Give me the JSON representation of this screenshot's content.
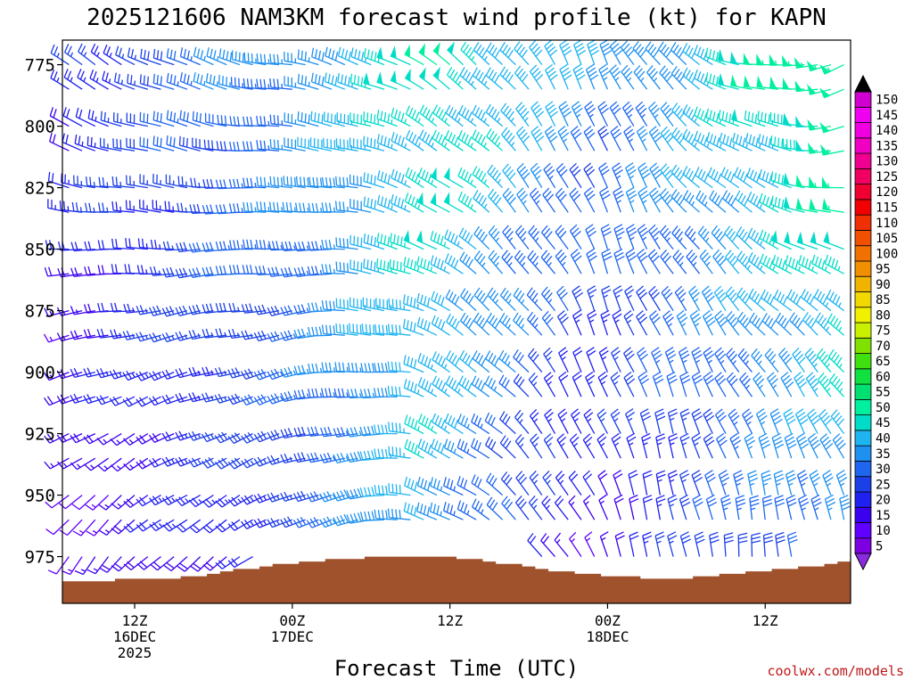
{
  "chart_data": {
    "type": "wind-barb-time-height",
    "title": "2025121606 NAM3KM forecast wind profile (kt) for KAPN",
    "xlabel": "Forecast Time (UTC)",
    "ylabel": "",
    "y_axis": {
      "reversed": true,
      "ylim": [
        765,
        994
      ],
      "ticks": [
        775,
        800,
        825,
        850,
        875,
        900,
        925,
        950,
        975
      ],
      "tick_labels": [
        "775",
        "800",
        "825",
        "850",
        "875",
        "900",
        "925",
        "950",
        "975"
      ]
    },
    "x_axis": {
      "xlim_hours": [
        6.5,
        66.5
      ],
      "ticks": [
        {
          "hour": 12,
          "label": "12Z",
          "sub": "16DEC",
          "sub2": "2025"
        },
        {
          "hour": 24,
          "label": "00Z",
          "sub": "17DEC",
          "sub2": ""
        },
        {
          "hour": 36,
          "label": "12Z",
          "sub": "",
          "sub2": ""
        },
        {
          "hour": 48,
          "label": "00Z",
          "sub": "18DEC",
          "sub2": ""
        },
        {
          "hour": 60,
          "label": "12Z",
          "sub": "",
          "sub2": ""
        }
      ]
    },
    "barb_times_hours": [
      7,
      8,
      9,
      10,
      11,
      12,
      13,
      14,
      15,
      16,
      17,
      18,
      19,
      20,
      21,
      22,
      23,
      24,
      25,
      26,
      27,
      28,
      29,
      30,
      31,
      32,
      33,
      34,
      35,
      36,
      37,
      38,
      39,
      40,
      41,
      42,
      43,
      44,
      45,
      46,
      47,
      48,
      49,
      50,
      51,
      52,
      53,
      54,
      55,
      56,
      57,
      58,
      59,
      60,
      61,
      62,
      63,
      64,
      65,
      66
    ],
    "barb_levels_mb": [
      775,
      785,
      800,
      810,
      825,
      835,
      850,
      860,
      875,
      885,
      900,
      910,
      925,
      935,
      950,
      960,
      975
    ],
    "surface_pressure_mb": [
      985,
      985,
      985,
      985,
      984,
      984,
      984,
      984,
      984,
      983,
      983,
      982,
      981,
      980,
      980,
      979,
      978,
      978,
      977,
      977,
      976,
      976,
      976,
      975,
      975,
      975,
      975,
      975,
      975,
      975,
      976,
      976,
      977,
      978,
      978,
      979,
      980,
      981,
      981,
      982,
      982,
      983,
      983,
      983,
      984,
      984,
      984,
      984,
      983,
      983,
      982,
      982,
      981,
      981,
      980,
      980,
      979,
      979,
      978,
      977
    ],
    "colorbar": {
      "levels": [
        5,
        10,
        15,
        20,
        25,
        30,
        35,
        40,
        45,
        50,
        55,
        60,
        65,
        70,
        75,
        80,
        85,
        90,
        95,
        100,
        105,
        110,
        115,
        120,
        125,
        130,
        135,
        140,
        145,
        150
      ],
      "labels": [
        "5",
        "10",
        "15",
        "20",
        "25",
        "30",
        "35",
        "40",
        "45",
        "50",
        "55",
        "60",
        "65",
        "70",
        "75",
        "80",
        "85",
        "90",
        "95",
        "100",
        "105",
        "110",
        "115",
        "120",
        "125",
        "130",
        "135",
        "140",
        "145",
        "150"
      ],
      "colors": [
        "#7c00e0",
        "#6000ff",
        "#3c00f0",
        "#2020f0",
        "#1c40e8",
        "#1e66f0",
        "#1e90f0",
        "#1eb4f0",
        "#00dcc8",
        "#00f0a0",
        "#00e070",
        "#10e040",
        "#40e010",
        "#80e000",
        "#c8f000",
        "#f0f000",
        "#f0d800",
        "#f0b400",
        "#f09000",
        "#f07000",
        "#f05000",
        "#f03000",
        "#f00000",
        "#f00030",
        "#f00060",
        "#f00090",
        "#f000c0",
        "#f000e0",
        "#f000f0",
        "#d000d0"
      ],
      "extend": "both"
    },
    "terrain_color": "#a0522d"
  },
  "credit": "coolwx.com/models"
}
